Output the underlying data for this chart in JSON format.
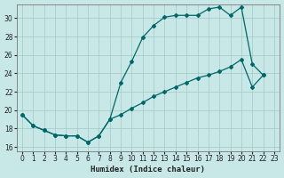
{
  "xlabel": "Humidex (Indice chaleur)",
  "background_color": "#c8e8e8",
  "grid_color": "#a8cccc",
  "line_color": "#006666",
  "xlim": [
    -0.5,
    23.5
  ],
  "ylim": [
    15.5,
    31.5
  ],
  "xticks": [
    0,
    1,
    2,
    3,
    4,
    5,
    6,
    7,
    8,
    9,
    10,
    11,
    12,
    13,
    14,
    15,
    16,
    17,
    18,
    19,
    20,
    21,
    22,
    23
  ],
  "yticks": [
    16,
    18,
    20,
    22,
    24,
    26,
    28,
    30
  ],
  "line1_x": [
    0,
    1,
    2,
    3,
    4,
    5,
    6,
    7,
    8,
    9,
    10,
    11,
    12,
    13,
    14,
    15,
    16,
    17,
    18,
    19,
    20,
    21,
    22
  ],
  "line1_y": [
    19.5,
    18.3,
    17.8,
    17.3,
    17.2,
    17.2,
    16.5,
    17.2,
    19.0,
    23.0,
    25.3,
    27.9,
    29.2,
    30.1,
    30.3,
    30.3,
    30.3,
    31.0,
    31.2,
    30.3,
    31.2,
    25.0,
    23.8
  ],
  "line2_x": [
    0,
    1,
    2,
    3,
    4,
    5,
    6,
    7,
    8,
    9,
    10,
    11,
    12,
    13,
    14,
    15,
    16,
    17,
    18,
    19,
    20,
    21,
    22
  ],
  "line2_y": [
    19.5,
    18.3,
    17.8,
    17.3,
    17.2,
    17.2,
    16.5,
    17.2,
    19.0,
    19.5,
    20.2,
    20.8,
    21.5,
    22.0,
    22.5,
    23.0,
    23.5,
    23.8,
    24.2,
    24.7,
    25.5,
    22.5,
    23.8
  ]
}
